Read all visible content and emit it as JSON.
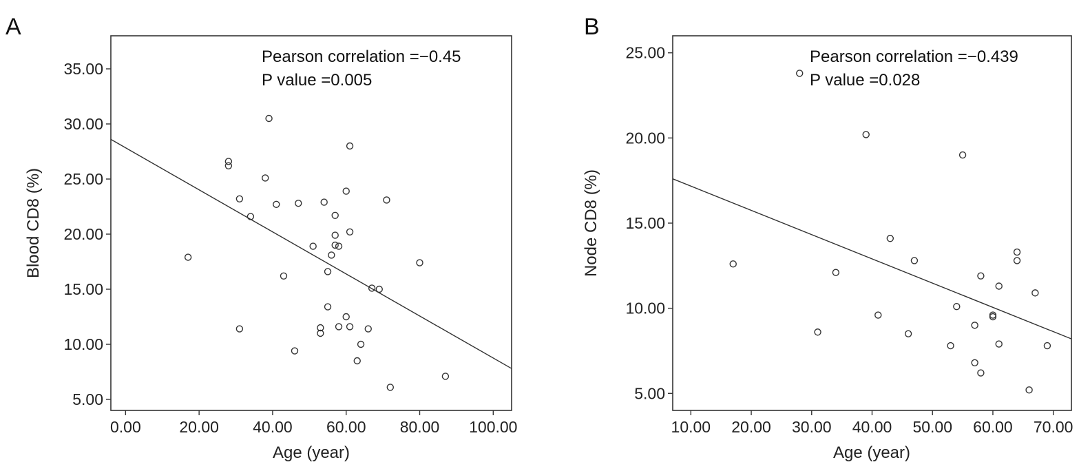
{
  "chart_data": [
    {
      "type": "scatter",
      "panel": "A",
      "xlabel": "Age (year)",
      "ylabel": "Blood CD8 (%)",
      "xlim": [
        -4,
        105
      ],
      "ylim": [
        4,
        38
      ],
      "xticks": [
        "0.00",
        "20.00",
        "40.00",
        "60.00",
        "80.00",
        "100.00"
      ],
      "xtick_values": [
        0,
        20,
        40,
        60,
        80,
        100
      ],
      "yticks": [
        "5.00",
        "10.00",
        "15.00",
        "20.00",
        "25.00",
        "30.00",
        "35.00"
      ],
      "ytick_values": [
        5,
        10,
        15,
        20,
        25,
        30,
        35
      ],
      "annotations": [
        "Pearson correlation =−0.45",
        "P value =0.005"
      ],
      "grid": false,
      "fit_line": [
        [
          -4,
          28.6
        ],
        [
          105,
          7.8
        ]
      ],
      "points": [
        [
          17,
          17.9
        ],
        [
          28,
          26.6
        ],
        [
          28,
          26.2
        ],
        [
          31,
          23.2
        ],
        [
          31,
          11.4
        ],
        [
          34,
          21.6
        ],
        [
          38,
          25.1
        ],
        [
          39,
          30.5
        ],
        [
          41,
          22.7
        ],
        [
          43,
          16.2
        ],
        [
          46,
          9.4
        ],
        [
          47,
          22.8
        ],
        [
          51,
          18.9
        ],
        [
          53,
          11.5
        ],
        [
          53,
          11.0
        ],
        [
          54,
          22.9
        ],
        [
          55,
          16.6
        ],
        [
          55,
          13.4
        ],
        [
          56,
          18.1
        ],
        [
          57,
          21.7
        ],
        [
          57,
          19.9
        ],
        [
          57,
          19.0
        ],
        [
          58,
          18.9
        ],
        [
          58,
          11.6
        ],
        [
          60,
          23.9
        ],
        [
          60,
          12.5
        ],
        [
          61,
          28.0
        ],
        [
          61,
          20.2
        ],
        [
          61,
          11.6
        ],
        [
          63,
          8.5
        ],
        [
          64,
          10.0
        ],
        [
          66,
          11.4
        ],
        [
          67,
          15.1
        ],
        [
          69,
          15.0
        ],
        [
          71,
          23.1
        ],
        [
          72,
          6.1
        ],
        [
          80,
          17.4
        ],
        [
          87,
          7.1
        ]
      ]
    },
    {
      "type": "scatter",
      "panel": "B",
      "xlabel": "Age (year)",
      "ylabel": "Node CD8 (%)",
      "xlim": [
        7,
        73
      ],
      "ylim": [
        4,
        26
      ],
      "xticks": [
        "10.00",
        "20.00",
        "30.00",
        "40.00",
        "50.00",
        "60.00",
        "70.00"
      ],
      "xtick_values": [
        10,
        20,
        30,
        40,
        50,
        60,
        70
      ],
      "yticks": [
        "5.00",
        "10.00",
        "15.00",
        "20.00",
        "25.00"
      ],
      "ytick_values": [
        5,
        10,
        15,
        20,
        25
      ],
      "annotations": [
        "Pearson correlation =−0.439",
        "P value =0.028"
      ],
      "grid": false,
      "fit_line": [
        [
          7,
          17.6
        ],
        [
          73,
          8.2
        ]
      ],
      "points": [
        [
          17,
          12.6
        ],
        [
          28,
          23.8
        ],
        [
          31,
          8.6
        ],
        [
          34,
          12.1
        ],
        [
          39,
          20.2
        ],
        [
          41,
          9.6
        ],
        [
          43,
          14.1
        ],
        [
          46,
          8.5
        ],
        [
          47,
          12.8
        ],
        [
          53,
          7.8
        ],
        [
          54,
          10.1
        ],
        [
          55,
          19.0
        ],
        [
          57,
          9.0
        ],
        [
          57,
          6.8
        ],
        [
          58,
          11.9
        ],
        [
          58,
          6.2
        ],
        [
          60,
          9.6
        ],
        [
          60,
          9.5
        ],
        [
          61,
          11.3
        ],
        [
          61,
          7.9
        ],
        [
          64,
          13.3
        ],
        [
          64,
          12.8
        ],
        [
          66,
          5.2
        ],
        [
          67,
          10.9
        ],
        [
          69,
          7.8
        ]
      ]
    }
  ]
}
